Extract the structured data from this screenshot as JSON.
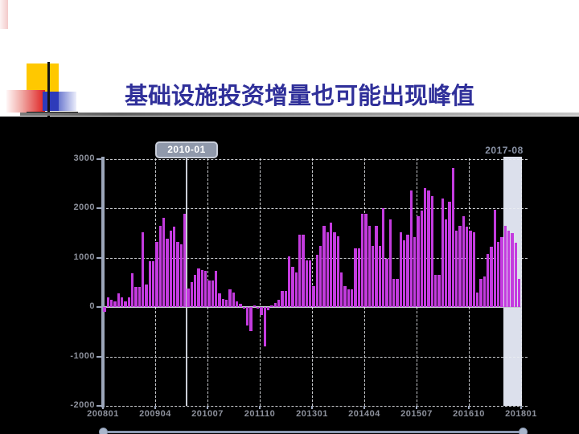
{
  "slide": {
    "title": "基础设施投资增量也可能出现峰值"
  },
  "colors": {
    "title": "#30309A",
    "bar": "#C43BDF",
    "band": "#DCE0EC",
    "axis": "#9CA6BA",
    "labels": "#8D919C",
    "tooltip_bg": "#9099AB",
    "tooltip_border": "#C9CEDA",
    "background_panel": "#000000"
  },
  "chart": {
    "cursor_label": "2010-01",
    "end_label": "2017-08"
  },
  "chart_data": {
    "type": "bar",
    "title": "",
    "xlabel": "",
    "ylabel": "",
    "ylim": [
      -2000,
      3000
    ],
    "grid": "dashed",
    "legend": "none",
    "background": "#000000",
    "bar_color": "#C43BDF",
    "y_ticks": [
      3000,
      2000,
      1000,
      0,
      -1000,
      -2000
    ],
    "x_ticks": [
      "200801",
      "200904",
      "201007",
      "201110",
      "201301",
      "201404",
      "201507",
      "201610",
      "201801"
    ],
    "cursor": {
      "x": "2010-01",
      "label": "2010-01"
    },
    "highlight_band": {
      "from": "2017-08",
      "to": "2018-01"
    },
    "end_label": "2017-08",
    "x": [
      "2008-01",
      "2008-02",
      "2008-03",
      "2008-04",
      "2008-05",
      "2008-06",
      "2008-07",
      "2008-08",
      "2008-09",
      "2008-10",
      "2008-11",
      "2008-12",
      "2009-01",
      "2009-02",
      "2009-03",
      "2009-04",
      "2009-05",
      "2009-06",
      "2009-07",
      "2009-08",
      "2009-09",
      "2009-10",
      "2009-11",
      "2009-12",
      "2010-01",
      "2010-02",
      "2010-03",
      "2010-04",
      "2010-05",
      "2010-06",
      "2010-07",
      "2010-08",
      "2010-09",
      "2010-10",
      "2010-11",
      "2010-12",
      "2011-01",
      "2011-02",
      "2011-03",
      "2011-04",
      "2011-05",
      "2011-06",
      "2011-07",
      "2011-08",
      "2011-09",
      "2011-10",
      "2011-11",
      "2011-12",
      "2012-01",
      "2012-02",
      "2012-03",
      "2012-04",
      "2012-05",
      "2012-06",
      "2012-07",
      "2012-08",
      "2012-09",
      "2012-10",
      "2012-11",
      "2012-12",
      "2013-01",
      "2013-02",
      "2013-03",
      "2013-04",
      "2013-05",
      "2013-06",
      "2013-07",
      "2013-08",
      "2013-09",
      "2013-10",
      "2013-11",
      "2013-12",
      "2014-01",
      "2014-02",
      "2014-03",
      "2014-04",
      "2014-05",
      "2014-06",
      "2014-07",
      "2014-08",
      "2014-09",
      "2014-10",
      "2014-11",
      "2014-12",
      "2015-01",
      "2015-02",
      "2015-03",
      "2015-04",
      "2015-05",
      "2015-06",
      "2015-07",
      "2015-08",
      "2015-09",
      "2015-10",
      "2015-11",
      "2015-12",
      "2016-01",
      "2016-02",
      "2016-03",
      "2016-04",
      "2016-05",
      "2016-06",
      "2016-07",
      "2016-08",
      "2016-09",
      "2016-10",
      "2016-11",
      "2016-12",
      "2017-01",
      "2017-02",
      "2017-03",
      "2017-04",
      "2017-05",
      "2017-06",
      "2017-07",
      "2017-08",
      "2017-09",
      "2017-10",
      "2017-11",
      "2017-12"
    ],
    "values": [
      -100,
      190,
      140,
      110,
      270,
      190,
      110,
      190,
      680,
      410,
      410,
      1510,
      460,
      920,
      920,
      1320,
      1650,
      1810,
      1380,
      1540,
      1620,
      1320,
      1270,
      1890,
      380,
      510,
      650,
      780,
      750,
      730,
      540,
      540,
      730,
      270,
      160,
      140,
      350,
      300,
      110,
      60,
      -30,
      -380,
      -490,
      30,
      -40,
      -160,
      -800,
      -60,
      30,
      80,
      140,
      330,
      330,
      1030,
      810,
      700,
      1460,
      1460,
      950,
      950,
      430,
      1050,
      1240,
      1650,
      1510,
      1700,
      1510,
      1430,
      700,
      430,
      350,
      350,
      1190,
      1190,
      1890,
      1890,
      1650,
      1240,
      1650,
      1240,
      2000,
      970,
      1780,
      570,
      570,
      1510,
      1350,
      1460,
      2350,
      1410,
      1840,
      1950,
      2400,
      2350,
      2240,
      650,
      650,
      2190,
      1780,
      2130,
      2810,
      1540,
      1650,
      1840,
      1620,
      1540,
      1510,
      300,
      570,
      620,
      1080,
      1220,
      1970,
      1320,
      1410,
      1650,
      1540,
      1490,
      1300,
      570
    ]
  }
}
